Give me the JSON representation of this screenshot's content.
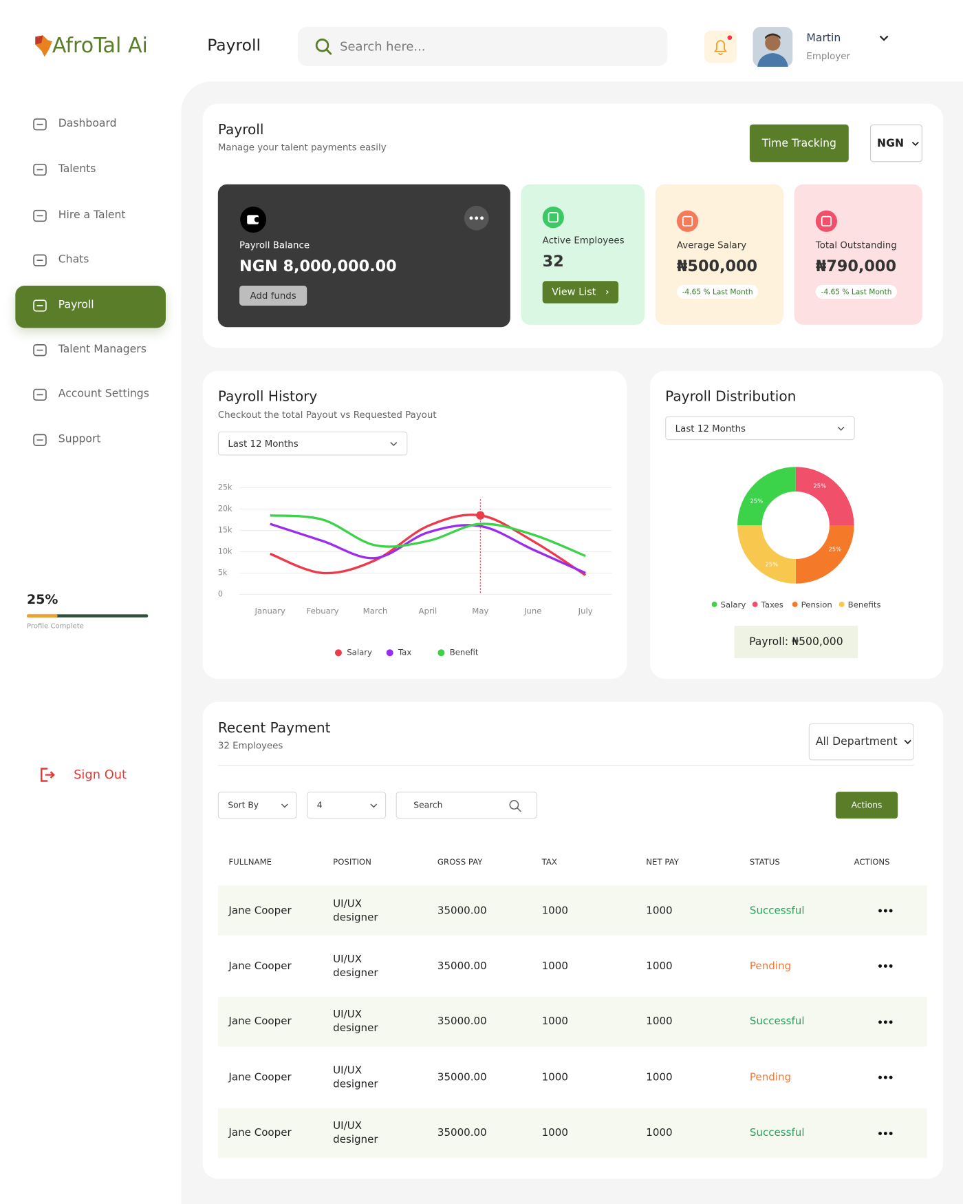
{
  "logo": "AfroTal Ai",
  "header": {
    "title": "Payroll",
    "search_placeholder": "Search here...",
    "user": {
      "name": "Martin",
      "role": "Employer"
    }
  },
  "sidebar": {
    "items": [
      "Dashboard",
      "Talents",
      "Hire a Talent",
      "Chats",
      "Payroll",
      "Talent Managers",
      "Account Settings",
      "Support"
    ],
    "active": 4,
    "progress": {
      "value": 25,
      "label": "25%",
      "caption": "Profile Complete"
    },
    "sign_out": "Sign Out"
  },
  "summary": {
    "title": "Payroll",
    "subtitle": "Manage your talent payments easily",
    "button": "Time Tracking",
    "currency": "NGN",
    "balance": {
      "label": "Payroll Balance",
      "amount": "NGN 8,000,000.00",
      "button": "Add funds"
    },
    "cards": [
      {
        "label": "Active Employees",
        "value": "32",
        "button": "View List",
        "color": "#d9f7e3",
        "icon": "#3cc864"
      },
      {
        "label": "Average Salary",
        "value": "₦500,000",
        "change": "-4.65 % Last Month",
        "color": "#fff2dc",
        "icon": "#f47a5a"
      },
      {
        "label": "Total Outstanding",
        "value": "₦790,000",
        "change": "-4.65 % Last Month",
        "color": "#fde0e2",
        "icon": "#f0506a"
      }
    ]
  },
  "history": {
    "title": "Payroll History",
    "subtitle": "Checkout the total Payout vs Requested Payout",
    "filter": "Last 12 Months",
    "chart": {
      "type": "line",
      "categories": [
        "January",
        "Febuary",
        "March",
        "April",
        "May",
        "June",
        "July"
      ],
      "series": [
        {
          "name": "Salary",
          "color": "#ec3a4a",
          "values": [
            9500,
            5000,
            8000,
            16000,
            18500,
            12500,
            4500
          ]
        },
        {
          "name": "Tax",
          "color": "#9a2cf0",
          "values": [
            16500,
            12500,
            8500,
            14500,
            16000,
            10500,
            5000
          ]
        },
        {
          "name": "Benefit",
          "color": "#3cd24a",
          "values": [
            18500,
            17500,
            11500,
            12500,
            16500,
            14000,
            9000
          ]
        }
      ],
      "ylim": [
        0,
        25000
      ],
      "yticks": [
        0,
        {
          "value": 5000,
          "label": "5k"
        },
        {
          "value": 10000,
          "label": "10k"
        },
        {
          "value": 15000,
          "label": "15k"
        },
        {
          "value": 20000,
          "label": "20k"
        },
        {
          "value": 25000,
          "label": "25k"
        }
      ],
      "grid": true,
      "highlight_index": 4
    }
  },
  "distribution": {
    "title": "Payroll Distribution",
    "filter": "Last 12 Months",
    "chart": {
      "type": "pie",
      "categories": [
        "Salary",
        "Taxes",
        "Pension",
        "Benefits"
      ],
      "values": [
        25,
        25,
        25,
        25
      ],
      "value_labels": [
        "25%",
        "25%",
        "25%",
        "25%"
      ],
      "colors": [
        "#3cd24a",
        "#f0506a",
        "#f47a2a",
        "#f8c84e"
      ]
    },
    "total": "Payroll: ₦500,000"
  },
  "payments": {
    "title": "Recent Payment",
    "subtitle": "32 Employees",
    "department": "All Department",
    "sort": "Sort By",
    "page_size": "4",
    "search": "Search",
    "actions": "Actions",
    "columns": [
      "FULLNAME",
      "POSITION",
      "GROSS PAY",
      "TAX",
      "NET PAY",
      "STATUS",
      "ACTIONS"
    ],
    "rows": [
      {
        "name": "Jane Cooper",
        "position": "UI/UX designer",
        "gross": "35000.00",
        "tax": "1000",
        "net": "1000",
        "status": "Successful",
        "status_color": "#22a45d"
      },
      {
        "name": "Jane Cooper",
        "position": "UI/UX designer",
        "gross": "35000.00",
        "tax": "1000",
        "net": "1000",
        "status": "Pending",
        "status_color": "#f07a3a"
      },
      {
        "name": "Jane Cooper",
        "position": "UI/UX designer",
        "gross": "35000.00",
        "tax": "1000",
        "net": "1000",
        "status": "Successful",
        "status_color": "#22a45d"
      },
      {
        "name": "Jane Cooper",
        "position": "UI/UX designer",
        "gross": "35000.00",
        "tax": "1000",
        "net": "1000",
        "status": "Pending",
        "status_color": "#f07a3a"
      },
      {
        "name": "Jane Cooper",
        "position": "UI/UX designer",
        "gross": "35000.00",
        "tax": "1000",
        "net": "1000",
        "status": "Successful",
        "status_color": "#22a45d"
      }
    ]
  }
}
